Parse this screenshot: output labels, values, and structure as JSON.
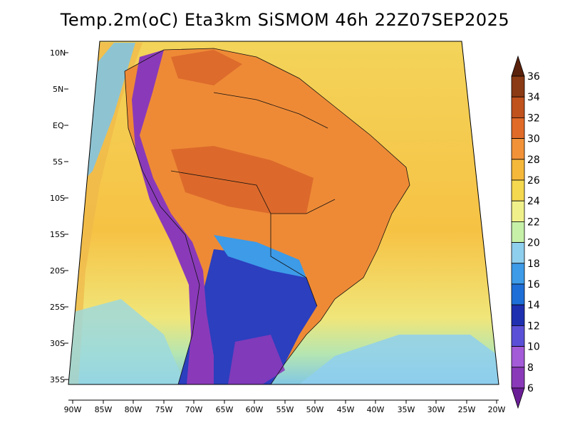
{
  "title": "Temp.2m(oC) Eta3km SiSMOM 46h 22Z07SEP2025",
  "lat_ticks": [
    "10N",
    "5N",
    "EQ",
    "5S",
    "10S",
    "15S",
    "20S",
    "25S",
    "30S",
    "35S"
  ],
  "lon_ticks": [
    "90W",
    "85W",
    "80W",
    "75W",
    "70W",
    "65W",
    "60W",
    "55W",
    "50W",
    "45W",
    "40W",
    "35W",
    "30W",
    "25W",
    "20W"
  ],
  "colorbar": {
    "labels": [
      "6",
      "8",
      "10",
      "12",
      "14",
      "16",
      "18",
      "20",
      "22",
      "24",
      "26",
      "28",
      "30",
      "32",
      "34",
      "36"
    ],
    "colors": [
      "#6a1e96",
      "#8a3ab9",
      "#a35bd8",
      "#5a50d8",
      "#1e2fb0",
      "#1e6ed8",
      "#3d9be8",
      "#8fcfee",
      "#c6f0a8",
      "#f0f08a",
      "#f4d850",
      "#f5b83a",
      "#f19238",
      "#e06a28",
      "#c0521e",
      "#8a3a14",
      "#5a220c"
    ]
  },
  "fields": {
    "ocean_color": "#f6c244",
    "land_warm_color": "#ee8a36",
    "land_hot_color": "#d9652a",
    "andes_color": "#8a3ab9",
    "cold_south_color": "#2b3fbf",
    "pacific_cool_color": "#7cc4ea"
  }
}
